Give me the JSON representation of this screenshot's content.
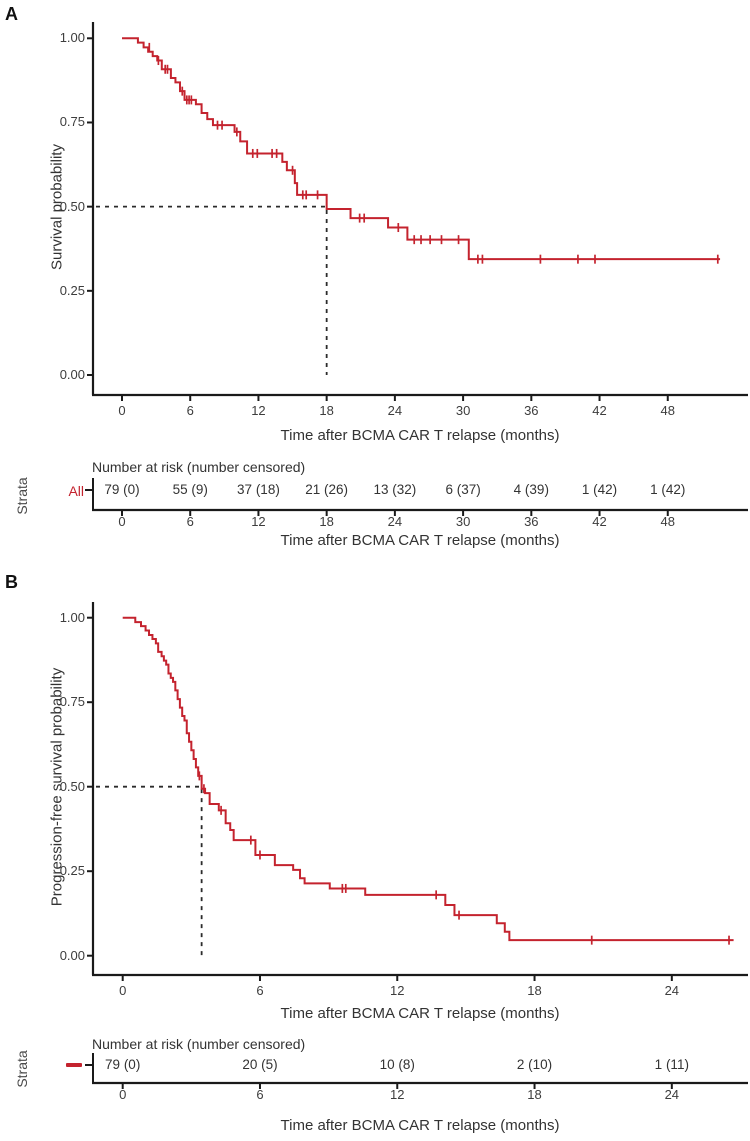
{
  "figure": {
    "background": "#ffffff",
    "curve_color": "#c4232e",
    "axis_color": "#1a1a1a",
    "text_color": "#333333",
    "dashed_color": "#2b2b2b"
  },
  "chart_data": [
    {
      "type": "line",
      "subtype": "kaplan-meier-step",
      "panel_label": "A",
      "xlabel": "Time after BCMA CAR T relapse (months)",
      "ylabel": "Survival probability",
      "xlim": [
        0,
        55
      ],
      "ylim": [
        0,
        1
      ],
      "xticks": [
        0,
        6,
        12,
        18,
        24,
        30,
        36,
        42,
        48
      ],
      "yticks": [
        0,
        0.25,
        0.5,
        0.75,
        1
      ],
      "grid": false,
      "legend": "none",
      "median_time": 18,
      "median_probability": 0.5,
      "steps": [
        [
          0,
          1.0
        ],
        [
          1.4,
          0.987
        ],
        [
          1.9,
          0.973
        ],
        [
          2.3,
          0.96
        ],
        [
          2.7,
          0.947
        ],
        [
          3.1,
          0.934
        ],
        [
          3.5,
          0.908
        ],
        [
          4.3,
          0.882
        ],
        [
          4.7,
          0.869
        ],
        [
          5.1,
          0.843
        ],
        [
          5.5,
          0.817
        ],
        [
          6.5,
          0.804
        ],
        [
          7.0,
          0.778
        ],
        [
          7.5,
          0.76
        ],
        [
          8.0,
          0.742
        ],
        [
          9.9,
          0.722
        ],
        [
          10.4,
          0.694
        ],
        [
          11.0,
          0.658
        ],
        [
          14.1,
          0.633
        ],
        [
          14.5,
          0.608
        ],
        [
          15.2,
          0.57
        ],
        [
          15.4,
          0.535
        ],
        [
          18.0,
          0.493
        ],
        [
          20.1,
          0.466
        ],
        [
          23.4,
          0.438
        ],
        [
          25.1,
          0.402
        ],
        [
          30.5,
          0.344
        ],
        [
          52.6,
          0.344
        ]
      ],
      "censor_marks": [
        [
          2.4,
          0.973
        ],
        [
          3.2,
          0.934
        ],
        [
          3.8,
          0.908
        ],
        [
          4.0,
          0.908
        ],
        [
          5.3,
          0.843
        ],
        [
          5.7,
          0.817
        ],
        [
          5.9,
          0.817
        ],
        [
          6.1,
          0.817
        ],
        [
          8.4,
          0.742
        ],
        [
          8.8,
          0.742
        ],
        [
          10.1,
          0.722
        ],
        [
          11.5,
          0.658
        ],
        [
          11.9,
          0.658
        ],
        [
          13.2,
          0.658
        ],
        [
          13.6,
          0.658
        ],
        [
          15.0,
          0.608
        ],
        [
          15.9,
          0.535
        ],
        [
          16.2,
          0.535
        ],
        [
          17.2,
          0.535
        ],
        [
          20.9,
          0.466
        ],
        [
          21.3,
          0.466
        ],
        [
          24.3,
          0.438
        ],
        [
          25.7,
          0.402
        ],
        [
          26.3,
          0.402
        ],
        [
          27.1,
          0.402
        ],
        [
          28.1,
          0.402
        ],
        [
          29.6,
          0.402
        ],
        [
          31.3,
          0.344
        ],
        [
          31.7,
          0.344
        ],
        [
          36.8,
          0.344
        ],
        [
          40.1,
          0.344
        ],
        [
          41.6,
          0.344
        ],
        [
          52.4,
          0.344
        ]
      ],
      "risk_table": {
        "axis_label": "Strata",
        "strata_label": "All",
        "strata_marker": "none",
        "title": "Number at risk (number censored)",
        "times": [
          0,
          6,
          12,
          18,
          24,
          30,
          36,
          42,
          48
        ],
        "values": [
          "79 (0)",
          "55 (9)",
          "37 (18)",
          "21 (26)",
          "13 (32)",
          "6 (37)",
          "4 (39)",
          "1 (42)",
          "1 (42)"
        ]
      }
    },
    {
      "type": "line",
      "subtype": "kaplan-meier-step",
      "panel_label": "B",
      "xlabel": "Time after BCMA CAR T relapse (months)",
      "ylabel": "Progression-free survival probability",
      "xlim": [
        0,
        27.5
      ],
      "ylim": [
        0,
        1
      ],
      "xticks": [
        0,
        6,
        12,
        18,
        24
      ],
      "yticks": [
        0,
        0.25,
        0.5,
        0.75,
        1
      ],
      "grid": false,
      "legend": "none",
      "median_time": 3.45,
      "median_probability": 0.5,
      "steps": [
        [
          0,
          1.0
        ],
        [
          0.55,
          0.987
        ],
        [
          0.8,
          0.975
        ],
        [
          1.0,
          0.962
        ],
        [
          1.15,
          0.949
        ],
        [
          1.3,
          0.937
        ],
        [
          1.45,
          0.924
        ],
        [
          1.55,
          0.899
        ],
        [
          1.7,
          0.886
        ],
        [
          1.8,
          0.873
        ],
        [
          1.9,
          0.861
        ],
        [
          2.0,
          0.835
        ],
        [
          2.1,
          0.822
        ],
        [
          2.2,
          0.81
        ],
        [
          2.3,
          0.785
        ],
        [
          2.4,
          0.759
        ],
        [
          2.5,
          0.734
        ],
        [
          2.6,
          0.709
        ],
        [
          2.7,
          0.696
        ],
        [
          2.8,
          0.658
        ],
        [
          2.9,
          0.633
        ],
        [
          3.0,
          0.608
        ],
        [
          3.1,
          0.582
        ],
        [
          3.2,
          0.557
        ],
        [
          3.3,
          0.532
        ],
        [
          3.45,
          0.494
        ],
        [
          3.6,
          0.481
        ],
        [
          3.8,
          0.449
        ],
        [
          4.2,
          0.43
        ],
        [
          4.5,
          0.392
        ],
        [
          4.7,
          0.372
        ],
        [
          4.85,
          0.342
        ],
        [
          5.8,
          0.298
        ],
        [
          6.65,
          0.268
        ],
        [
          7.45,
          0.254
        ],
        [
          7.75,
          0.229
        ],
        [
          7.95,
          0.214
        ],
        [
          9.05,
          0.199
        ],
        [
          10.6,
          0.18
        ],
        [
          14.1,
          0.15
        ],
        [
          14.5,
          0.12
        ],
        [
          16.35,
          0.096
        ],
        [
          16.7,
          0.071
        ],
        [
          16.9,
          0.046
        ],
        [
          26.7,
          0.046
        ]
      ],
      "censor_marks": [
        [
          3.35,
          0.532
        ],
        [
          3.55,
          0.494
        ],
        [
          4.3,
          0.43
        ],
        [
          5.6,
          0.342
        ],
        [
          6.0,
          0.298
        ],
        [
          9.6,
          0.199
        ],
        [
          9.75,
          0.199
        ],
        [
          13.7,
          0.18
        ],
        [
          14.7,
          0.12
        ],
        [
          20.5,
          0.046
        ],
        [
          26.5,
          0.046
        ]
      ],
      "risk_table": {
        "axis_label": "Strata",
        "strata_label": "",
        "strata_marker": "red-dash",
        "title": "Number at risk (number censored)",
        "times": [
          0,
          6,
          12,
          18,
          24
        ],
        "values": [
          "79 (0)",
          "20 (5)",
          "10 (8)",
          "2 (10)",
          "1 (11)"
        ]
      }
    }
  ]
}
